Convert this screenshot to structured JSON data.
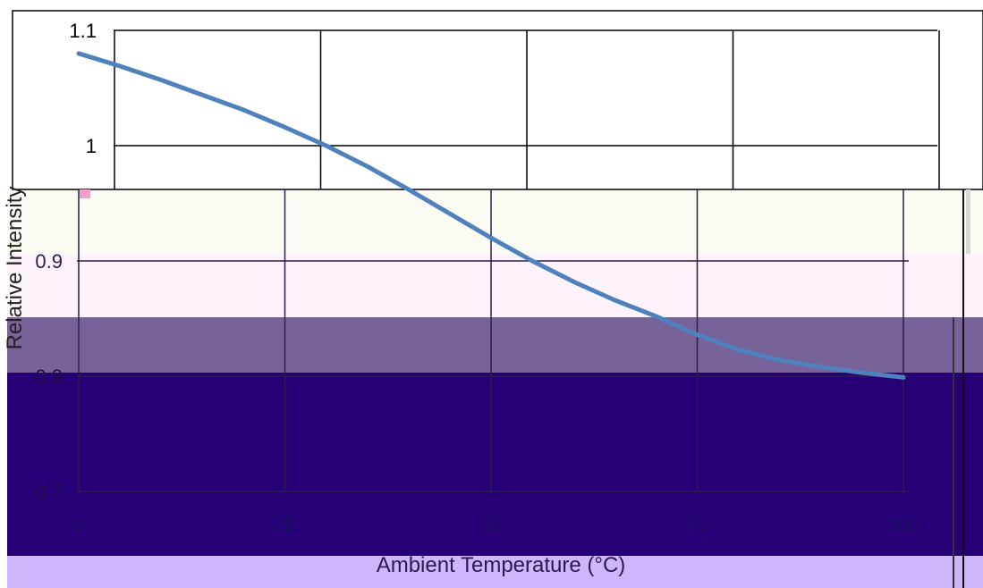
{
  "chart_data": {
    "type": "line",
    "title": "",
    "xlabel": "Ambient Temperature (°C)",
    "ylabel": "Relative Intensity",
    "xlim": [
      0,
      100
    ],
    "ylim": [
      0.7,
      1.1
    ],
    "x_ticks": [
      0,
      25,
      50,
      75,
      100
    ],
    "y_ticks": [
      0.7,
      0.8,
      0.9,
      1,
      1.1
    ],
    "x_tick_labels": [
      "0",
      "25",
      "50",
      "75",
      "100"
    ],
    "y_tick_labels": [
      "0.7",
      "0.8",
      "0.9",
      "1",
      "1.1"
    ],
    "grid": true,
    "series": [
      {
        "name": "",
        "color": "#4f81bd",
        "x": [
          0,
          5,
          10,
          15,
          20,
          25,
          30,
          35,
          40,
          45,
          50,
          55,
          60,
          65,
          70,
          75,
          80,
          85,
          90,
          95,
          100
        ],
        "y": [
          1.08,
          1.069,
          1.057,
          1.044,
          1.031,
          1.016,
          1.0,
          0.982,
          0.962,
          0.941,
          0.92,
          0.9,
          0.882,
          0.866,
          0.852,
          0.836,
          0.823,
          0.814,
          0.808,
          0.803,
          0.799
        ]
      }
    ]
  }
}
